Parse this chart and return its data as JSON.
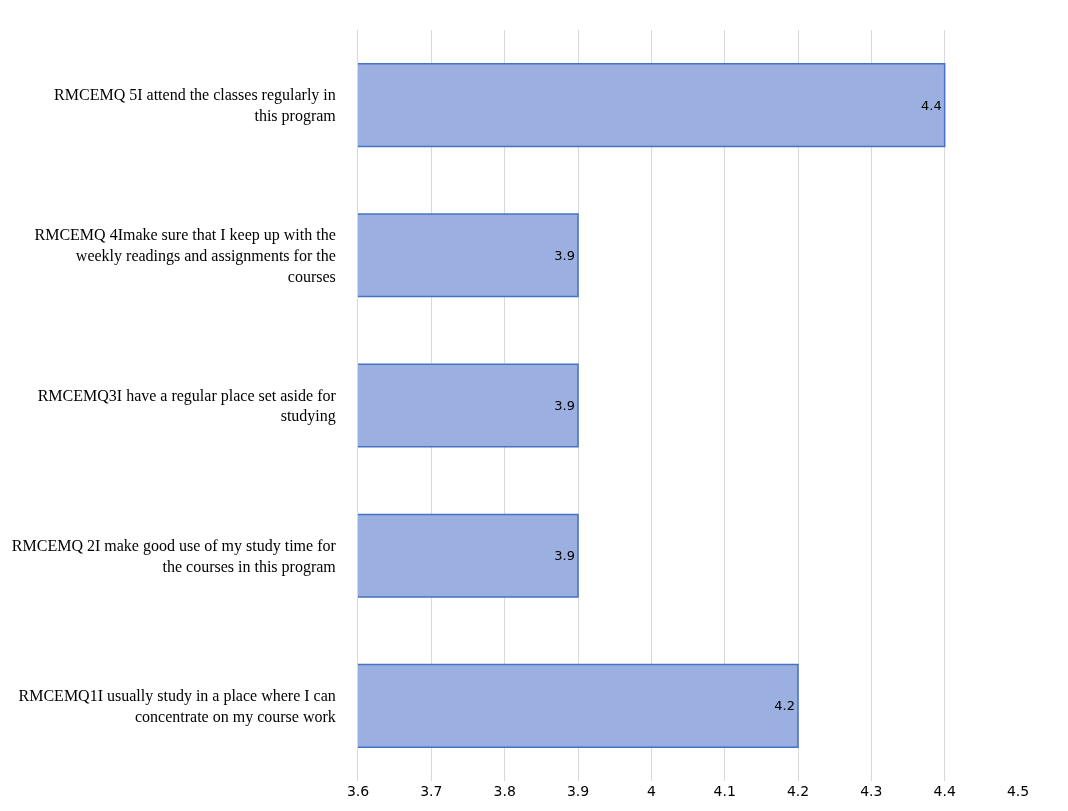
{
  "chart_data": {
    "type": "bar",
    "orientation": "horizontal",
    "categories": [
      "RMCEMQ 5I attend the classes regularly in this program",
      "RMCEMQ 4Imake sure that I keep up with the weekly readings and assignments for the courses",
      "RMCEMQ3I have a regular place set aside for studying",
      "RMCEMQ 2I make good use of my study time for the courses in this program",
      "RMCEMQ1I usually study in a place where I can concentrate on my course work"
    ],
    "values": [
      4.4,
      3.9,
      3.9,
      3.9,
      4.2
    ],
    "color": "#9bb0e0",
    "xlim": [
      3.6,
      4.5
    ],
    "xticks": [
      3.6,
      3.7,
      3.8,
      3.9,
      4,
      4.1,
      4.2,
      4.3,
      4.4,
      4.5
    ],
    "grid": "x",
    "data_labels": true
  }
}
